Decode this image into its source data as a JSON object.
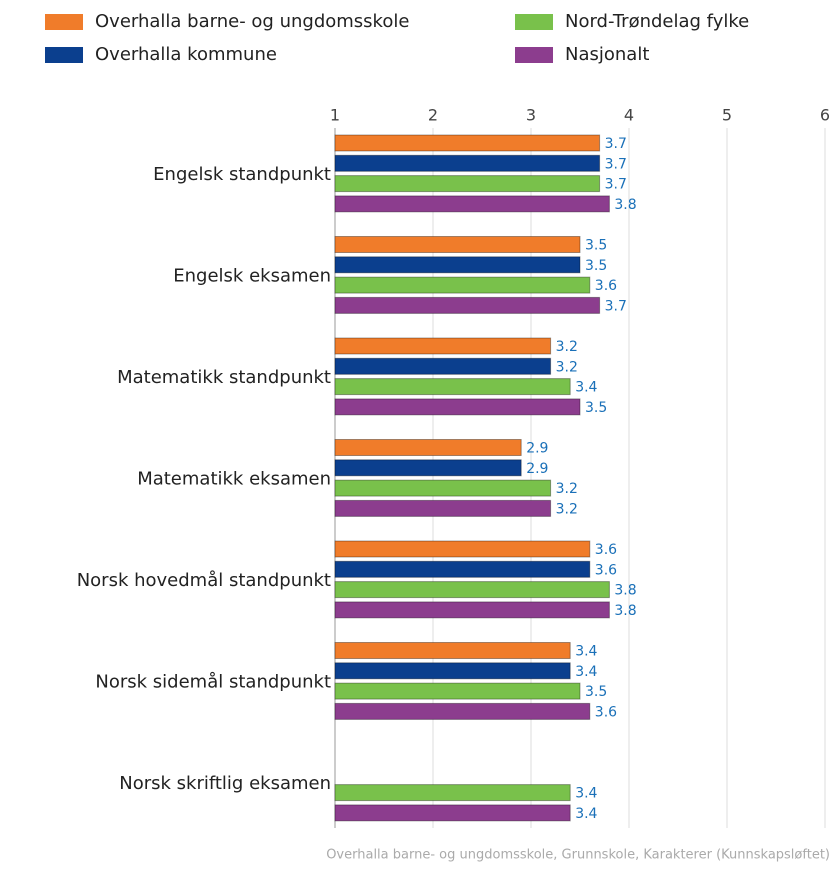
{
  "chart_data": {
    "type": "bar",
    "orientation": "horizontal",
    "categories": [
      "Engelsk standpunkt",
      "Engelsk eksamen",
      "Matematikk standpunkt",
      "Matematikk eksamen",
      "Norsk hovedmål standpunkt",
      "Norsk sidemål standpunkt",
      "Norsk skriftlig eksamen"
    ],
    "series": [
      {
        "name": "Overhalla barne- og ungdomsskole",
        "color": "#f07c2a",
        "values": [
          3.7,
          3.5,
          3.2,
          2.9,
          3.6,
          3.4,
          null
        ]
      },
      {
        "name": "Overhalla kommune",
        "color": "#0b3f8e",
        "values": [
          3.7,
          3.5,
          3.2,
          2.9,
          3.6,
          3.4,
          null
        ]
      },
      {
        "name": "Nord-Trøndelag fylke",
        "color": "#79c14b",
        "values": [
          3.7,
          3.6,
          3.4,
          3.2,
          3.8,
          3.5,
          3.4
        ]
      },
      {
        "name": "Nasjonalt",
        "color": "#8c3d8e",
        "values": [
          3.8,
          3.7,
          3.5,
          3.2,
          3.8,
          3.6,
          3.4
        ]
      }
    ],
    "xlim": [
      1,
      6
    ],
    "xticks": [
      1,
      2,
      3,
      4,
      5,
      6
    ],
    "grid": true,
    "caption": "Overhalla barne- og ungdomsskole, Grunnskole, Karakterer (Kunnskapsløftet)"
  }
}
